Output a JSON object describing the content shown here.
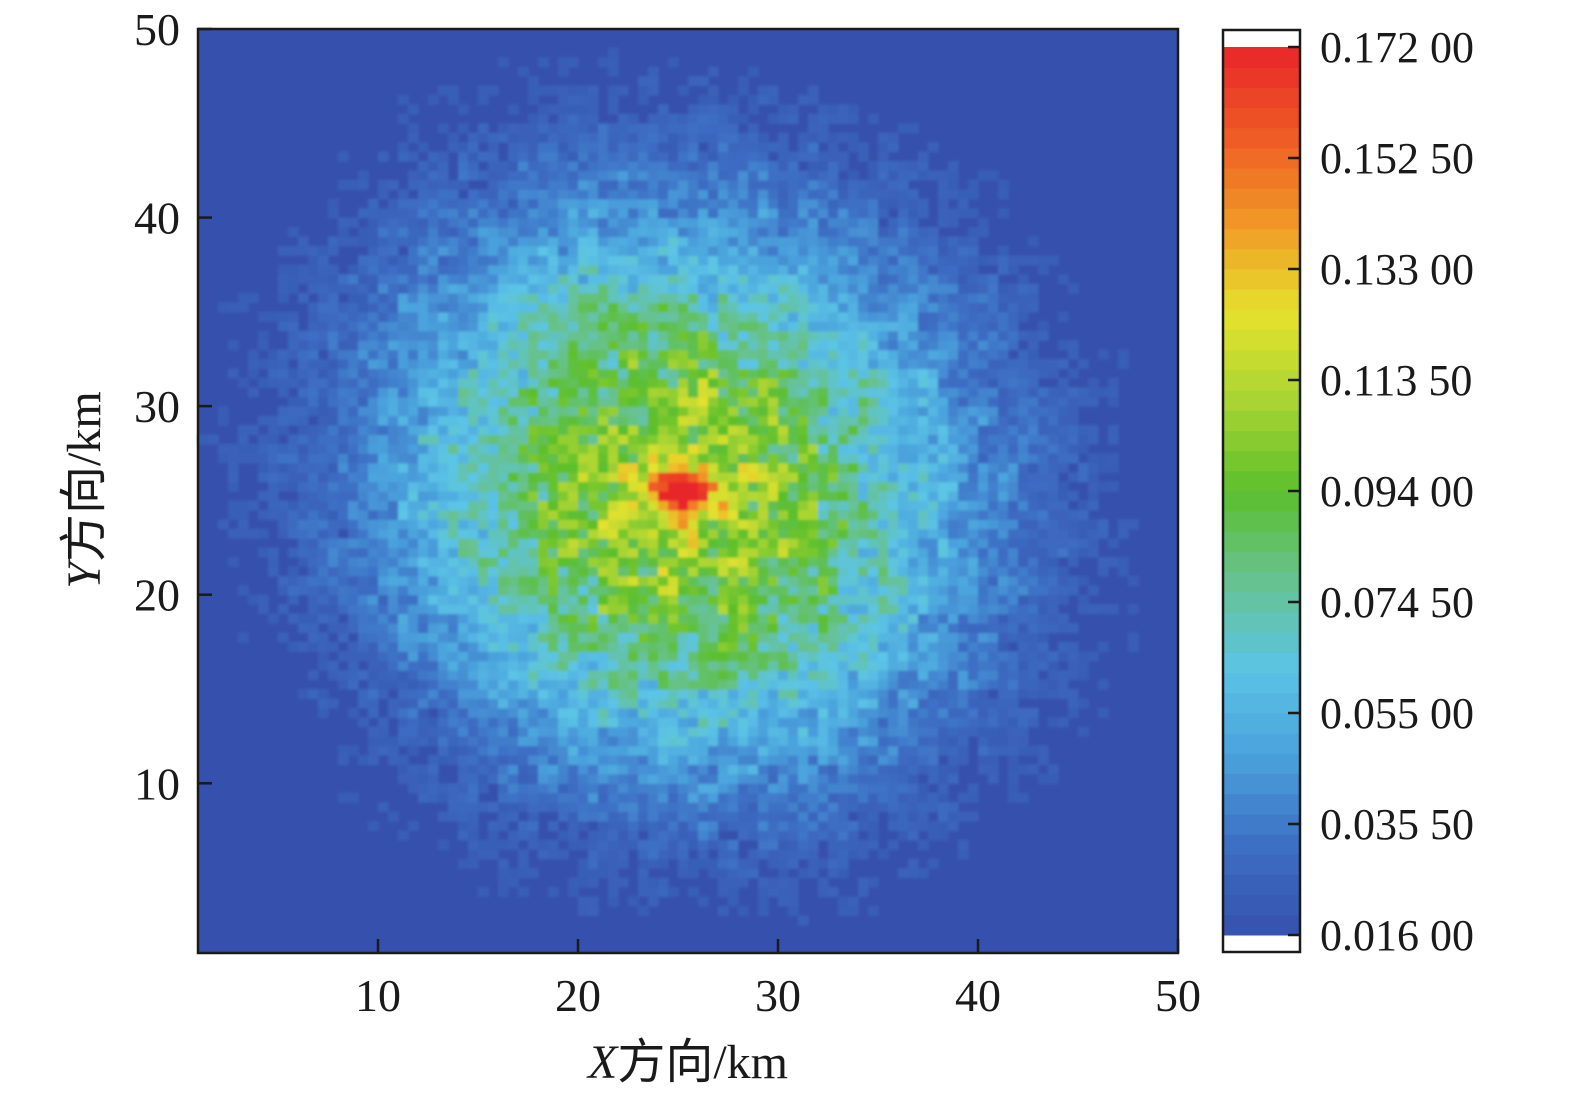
{
  "chart_data": {
    "type": "heatmap",
    "xlabel": {
      "var": "X",
      "rest": "方向/km"
    },
    "ylabel": {
      "var": "Y",
      "rest": "方向/km"
    },
    "x_ticks": [
      "10",
      "20",
      "30",
      "40",
      "50"
    ],
    "y_ticks": [
      "10",
      "20",
      "30",
      "40",
      "50"
    ],
    "xlim": [
      1,
      50
    ],
    "ylim": [
      1,
      50
    ],
    "colorbar": {
      "ticks": [
        "0.172 00",
        "0.152 50",
        "0.133 00",
        "0.113 50",
        "0.094 00",
        "0.074 50",
        "0.055 00",
        "0.035 50",
        "0.016 00"
      ],
      "min": 0.016,
      "max": 0.172,
      "colors": [
        "#3651ad",
        "#3d6ec4",
        "#4aa1dc",
        "#5cc4e6",
        "#67c28f",
        "#5cbf2c",
        "#a8d433",
        "#e5e22d",
        "#f19a26",
        "#ef5b25",
        "#e8252a"
      ]
    },
    "field": {
      "description_of_model": "concentration peak near center",
      "peak_x": 25,
      "peak_y": 25.5,
      "peak_value": 0.172,
      "background_value": 0.016
    }
  }
}
